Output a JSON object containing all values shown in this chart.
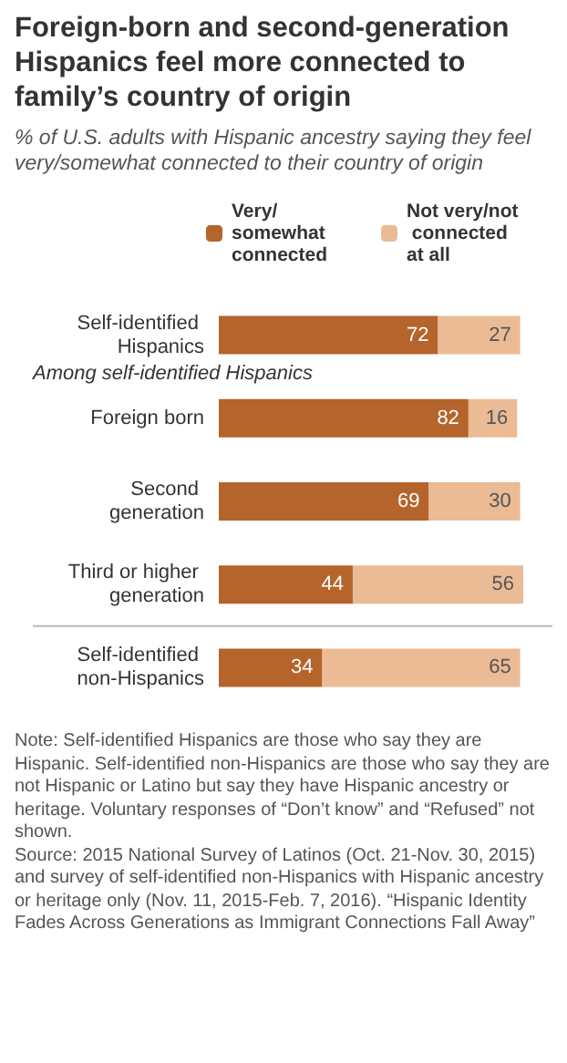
{
  "chart_data": {
    "type": "bar",
    "orientation": "horizontal",
    "stacked": true,
    "title": "Foreign-born and second-generation Hispanics feel more connected to family’s country of origin",
    "subtitle": "% of U.S. adults with Hispanic ancestry saying they feel very/somewhat connected to their country of origin",
    "categories": [
      "Self-identified Hispanics",
      "Foreign born",
      "Second generation",
      "Third or higher generation",
      "Self-identified non-Hispanics"
    ],
    "series": [
      {
        "name": "Very/somewhat connected",
        "color": "#b5642b",
        "values": [
          72,
          82,
          69,
          44,
          34
        ]
      },
      {
        "name": "Not very/not connected at all",
        "color": "#eabb95",
        "values": [
          27,
          16,
          30,
          56,
          65
        ]
      }
    ],
    "data_labels": true,
    "legend": "top",
    "tick_labels": "y",
    "annotations": [
      "Among self-identified Hispanics",
      "Note: Self-identified Hispanics are those who say they are Hispanic. Self-identified non-Hispanics are those who say they are not Hispanic or Latino but say they have Hispanic ancestry or heritage. Voluntary responses of “Don’t know” and “Refused” not shown.",
      "Source: 2015 National Survey of Latinos (Oct. 21-Nov. 30, 2015) and survey of self-identified non-Hispanics with Hispanic ancestry or heritage only (Nov. 11, 2015-Feb. 7, 2016). “Hispanic Identity Fades Across Generations as Immigrant Connections Fall Away”"
    ]
  }
}
